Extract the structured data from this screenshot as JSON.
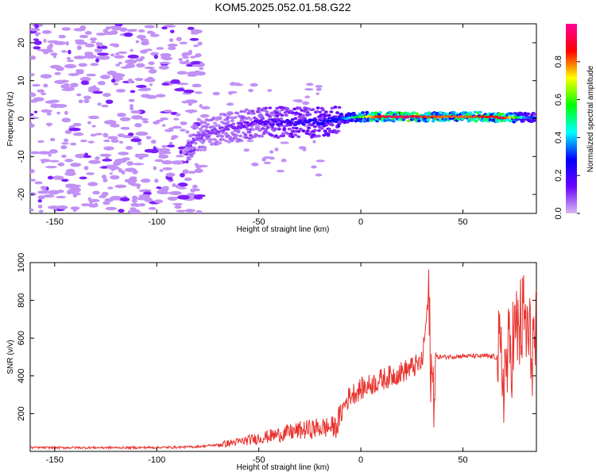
{
  "chart_data": [
    {
      "type": "heatmap",
      "title": "KOM5.2025.052.01.58.G22",
      "xlabel": "Height of straight line (km)",
      "ylabel": "Frequency (Hz)",
      "xlim": [
        -162,
        86
      ],
      "ylim": [
        -25,
        25
      ],
      "xticks": [
        "-150",
        "-100",
        "-50",
        "0",
        "50"
      ],
      "yticks": [
        "-20",
        "-10",
        "0",
        "10",
        "20"
      ],
      "colorbar": {
        "label": "Normalized spectral amplitude",
        "range": [
          0,
          1
        ],
        "ticks": [
          "0.0",
          "0.2",
          "0.4",
          "0.6",
          "0.8"
        ],
        "colormap": [
          "#d8b8f2",
          "#6a00ff",
          "#0000ff",
          "#00ffff",
          "#00ff00",
          "#ffff00",
          "#ff0000",
          "#ff0099"
        ]
      },
      "ridge": {
        "x": [
          -85,
          -80,
          -70,
          -60,
          -50,
          -40,
          -30,
          -20,
          -10,
          0,
          10,
          20,
          30,
          40,
          50,
          60,
          70,
          80,
          85
        ],
        "freq": [
          -7,
          -5,
          -3,
          -2,
          -1,
          -1,
          -1,
          -1,
          0,
          0.5,
          0.5,
          0.5,
          0.5,
          0.5,
          0.5,
          0.5,
          0.3,
          0.3,
          0.3
        ],
        "amplitude": [
          0.1,
          0.1,
          0.1,
          0.12,
          0.15,
          0.2,
          0.22,
          0.25,
          0.3,
          0.6,
          0.9,
          0.95,
          0.85,
          0.8,
          0.8,
          0.85,
          0.9,
          0.4,
          0.3
        ]
      }
    },
    {
      "type": "line",
      "xlabel": "Height of straight line (km)",
      "ylabel": "SNR (v/v)",
      "xlim": [
        -162,
        86
      ],
      "ylim": [
        0,
        1000
      ],
      "xticks": [
        "-150",
        "-100",
        "-50",
        "0",
        "50"
      ],
      "yticks": [
        "200",
        "400",
        "600",
        "800",
        "1000"
      ],
      "color": "#e8322d",
      "x": [
        -162,
        -150,
        -130,
        -110,
        -90,
        -80,
        -70,
        -60,
        -50,
        -40,
        -30,
        -20,
        -12,
        -8,
        -5,
        0,
        10,
        20,
        30,
        33,
        35,
        37,
        40,
        50,
        60,
        67,
        70,
        75,
        80,
        83,
        86
      ],
      "y": [
        20,
        20,
        20,
        20,
        22,
        25,
        35,
        50,
        70,
        90,
        110,
        125,
        130,
        250,
        300,
        330,
        380,
        420,
        470,
        800,
        300,
        500,
        500,
        505,
        505,
        500,
        400,
        600,
        700,
        550,
        580
      ]
    }
  ]
}
